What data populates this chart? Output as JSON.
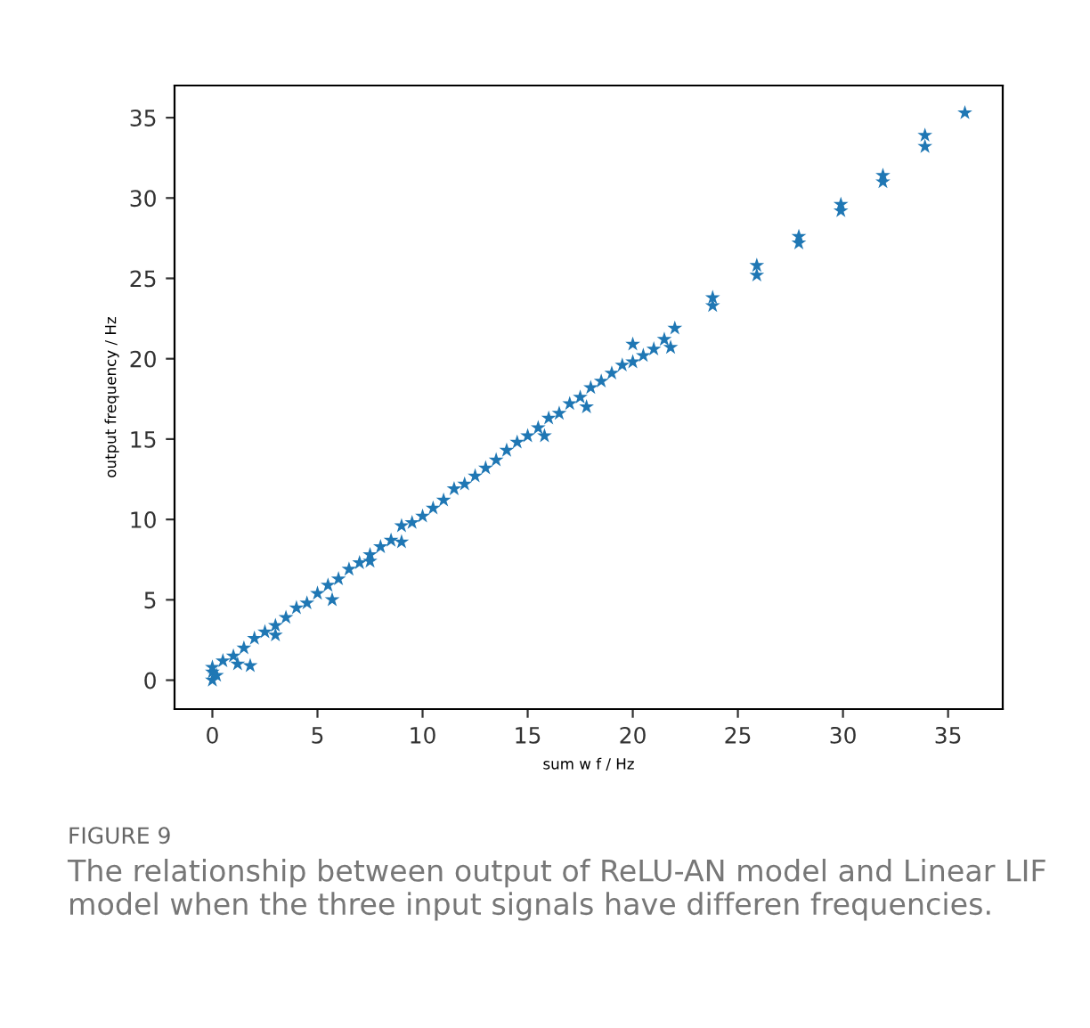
{
  "chart_data": {
    "type": "scatter",
    "xlabel": "sum w f / Hz",
    "ylabel": "output frequency / Hz",
    "x": [
      0,
      0,
      0,
      0.2,
      1.8,
      0.5,
      1,
      1.5,
      2,
      2.5,
      3,
      3.5,
      4,
      4.5,
      5,
      5.5,
      6,
      6.5,
      7,
      7.5,
      8,
      8.5,
      9,
      9.5,
      10,
      10.5,
      11,
      11.5,
      12,
      12.5,
      13,
      13.5,
      14,
      14.5,
      15,
      15.5,
      16,
      16.5,
      17,
      17.5,
      18,
      18.5,
      19,
      19.5,
      20,
      20,
      20.5,
      21,
      21.5,
      22,
      21.8,
      5.7,
      9,
      15.8,
      17.8,
      1.2,
      3,
      7.5,
      23.8,
      23.8,
      25.9,
      25.9,
      27.9,
      27.9,
      29.9,
      29.9,
      31.9,
      31.9,
      33.9,
      33.9,
      35.8
    ],
    "values": [
      0,
      0.5,
      0.8,
      0.3,
      0.9,
      1.2,
      1.5,
      2,
      2.6,
      3,
      3.4,
      3.9,
      4.5,
      4.8,
      5.4,
      5.9,
      6.3,
      6.9,
      7.3,
      7.8,
      8.3,
      8.7,
      9.6,
      9.8,
      10.2,
      10.7,
      11.2,
      11.9,
      12.2,
      12.7,
      13.2,
      13.7,
      14.3,
      14.8,
      15.2,
      15.7,
      16.3,
      16.6,
      17.2,
      17.6,
      18.2,
      18.6,
      19.1,
      19.6,
      20.9,
      19.8,
      20.2,
      20.6,
      21.2,
      21.9,
      20.7,
      5,
      8.6,
      15.2,
      17,
      1,
      2.8,
      7.4,
      23.8,
      23.3,
      25.8,
      25.2,
      27.6,
      27.2,
      29.6,
      29.2,
      31.4,
      31,
      33.9,
      33.2,
      35.3
    ],
    "color": "#1f77b4",
    "marker": "star",
    "grid": false,
    "xlim": [
      -1.8,
      37.6
    ],
    "ylim": [
      -1.8,
      37
    ],
    "xticks": [
      0,
      5,
      10,
      15,
      20,
      25,
      30,
      35
    ],
    "yticks": [
      0,
      5,
      10,
      15,
      20,
      25,
      30,
      35
    ],
    "annotations": [
      "FIGURE 9",
      "The relationship between output of ReLU-AN model and Linear LIF model when the three input signals have differen frequencies."
    ]
  }
}
